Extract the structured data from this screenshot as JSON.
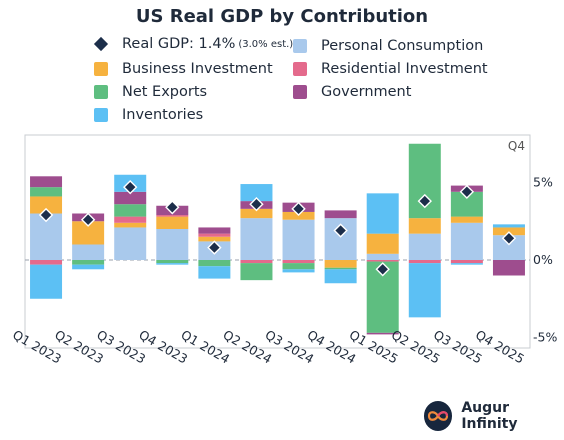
{
  "title": "US Real GDP by Contribution",
  "legend": {
    "real_gdp": "Real GDP: 1.4%",
    "real_gdp_note": "(3.0% est.)",
    "personal_consumption": "Personal Consumption",
    "business_investment": "Business Investment",
    "residential_investment": "Residential Investment",
    "net_exports": "Net Exports",
    "government": "Government",
    "inventories": "Inventories"
  },
  "colors": {
    "personal_consumption": "#a9c9ec",
    "business_investment": "#f6b23f",
    "residential_investment": "#e46a8c",
    "net_exports": "#5ebe80",
    "government": "#9e4d8e",
    "inventories": "#5cc0f4",
    "real_gdp": "#1c2e4a"
  },
  "brand": "Augur Infinity",
  "chart_data": {
    "type": "bar",
    "stacked": true,
    "title": "US Real GDP by Contribution",
    "annotation": "Q4",
    "categories": [
      "Q1 2023",
      "Q2 2023",
      "Q3 2023",
      "Q4 2023",
      "Q1 2024",
      "Q2 2024",
      "Q3 2024",
      "Q4 2024",
      "Q1 2025",
      "Q2 2025",
      "Q3 2025",
      "Q4 2025"
    ],
    "y_ticks": [
      "5%",
      "0%",
      "-5%"
    ],
    "y_tick_values": [
      5,
      0,
      -5
    ],
    "ylim": [
      -5.7,
      7.6
    ],
    "series": [
      {
        "key": "personal_consumption",
        "name": "Personal Consumption",
        "values": [
          3.0,
          1.0,
          2.1,
          2.0,
          1.2,
          2.7,
          2.6,
          2.7,
          0.4,
          1.7,
          2.4,
          1.6
        ]
      },
      {
        "key": "business_investment",
        "name": "Business Investment",
        "values": [
          1.1,
          1.5,
          0.3,
          0.8,
          0.3,
          0.6,
          0.5,
          -0.5,
          1.3,
          1.0,
          0.4,
          0.5
        ]
      },
      {
        "key": "residential_investment",
        "name": "Residential Investment",
        "values": [
          -0.3,
          0.0,
          0.4,
          0.1,
          0.2,
          -0.2,
          -0.2,
          0.0,
          -0.1,
          -0.2,
          -0.2,
          0.0
        ]
      },
      {
        "key": "net_exports",
        "name": "Net Exports",
        "values": [
          0.6,
          -0.3,
          0.8,
          -0.2,
          -0.4,
          -1.1,
          -0.4,
          -0.1,
          -4.6,
          4.8,
          1.6,
          0.0
        ]
      },
      {
        "key": "government",
        "name": "Government",
        "values": [
          0.7,
          0.5,
          0.8,
          0.6,
          0.4,
          0.5,
          0.6,
          0.5,
          -0.1,
          0.0,
          0.4,
          -1.0
        ]
      },
      {
        "key": "inventories",
        "name": "Inventories",
        "values": [
          -2.2,
          -0.3,
          1.1,
          -0.1,
          -0.8,
          1.1,
          -0.2,
          -0.9,
          2.6,
          -3.5,
          -0.1,
          0.2
        ]
      }
    ],
    "real_gdp": {
      "name": "Real GDP",
      "values": [
        2.9,
        2.6,
        4.7,
        3.4,
        0.8,
        3.6,
        3.3,
        1.9,
        -0.6,
        3.8,
        4.4,
        1.4
      ]
    }
  }
}
